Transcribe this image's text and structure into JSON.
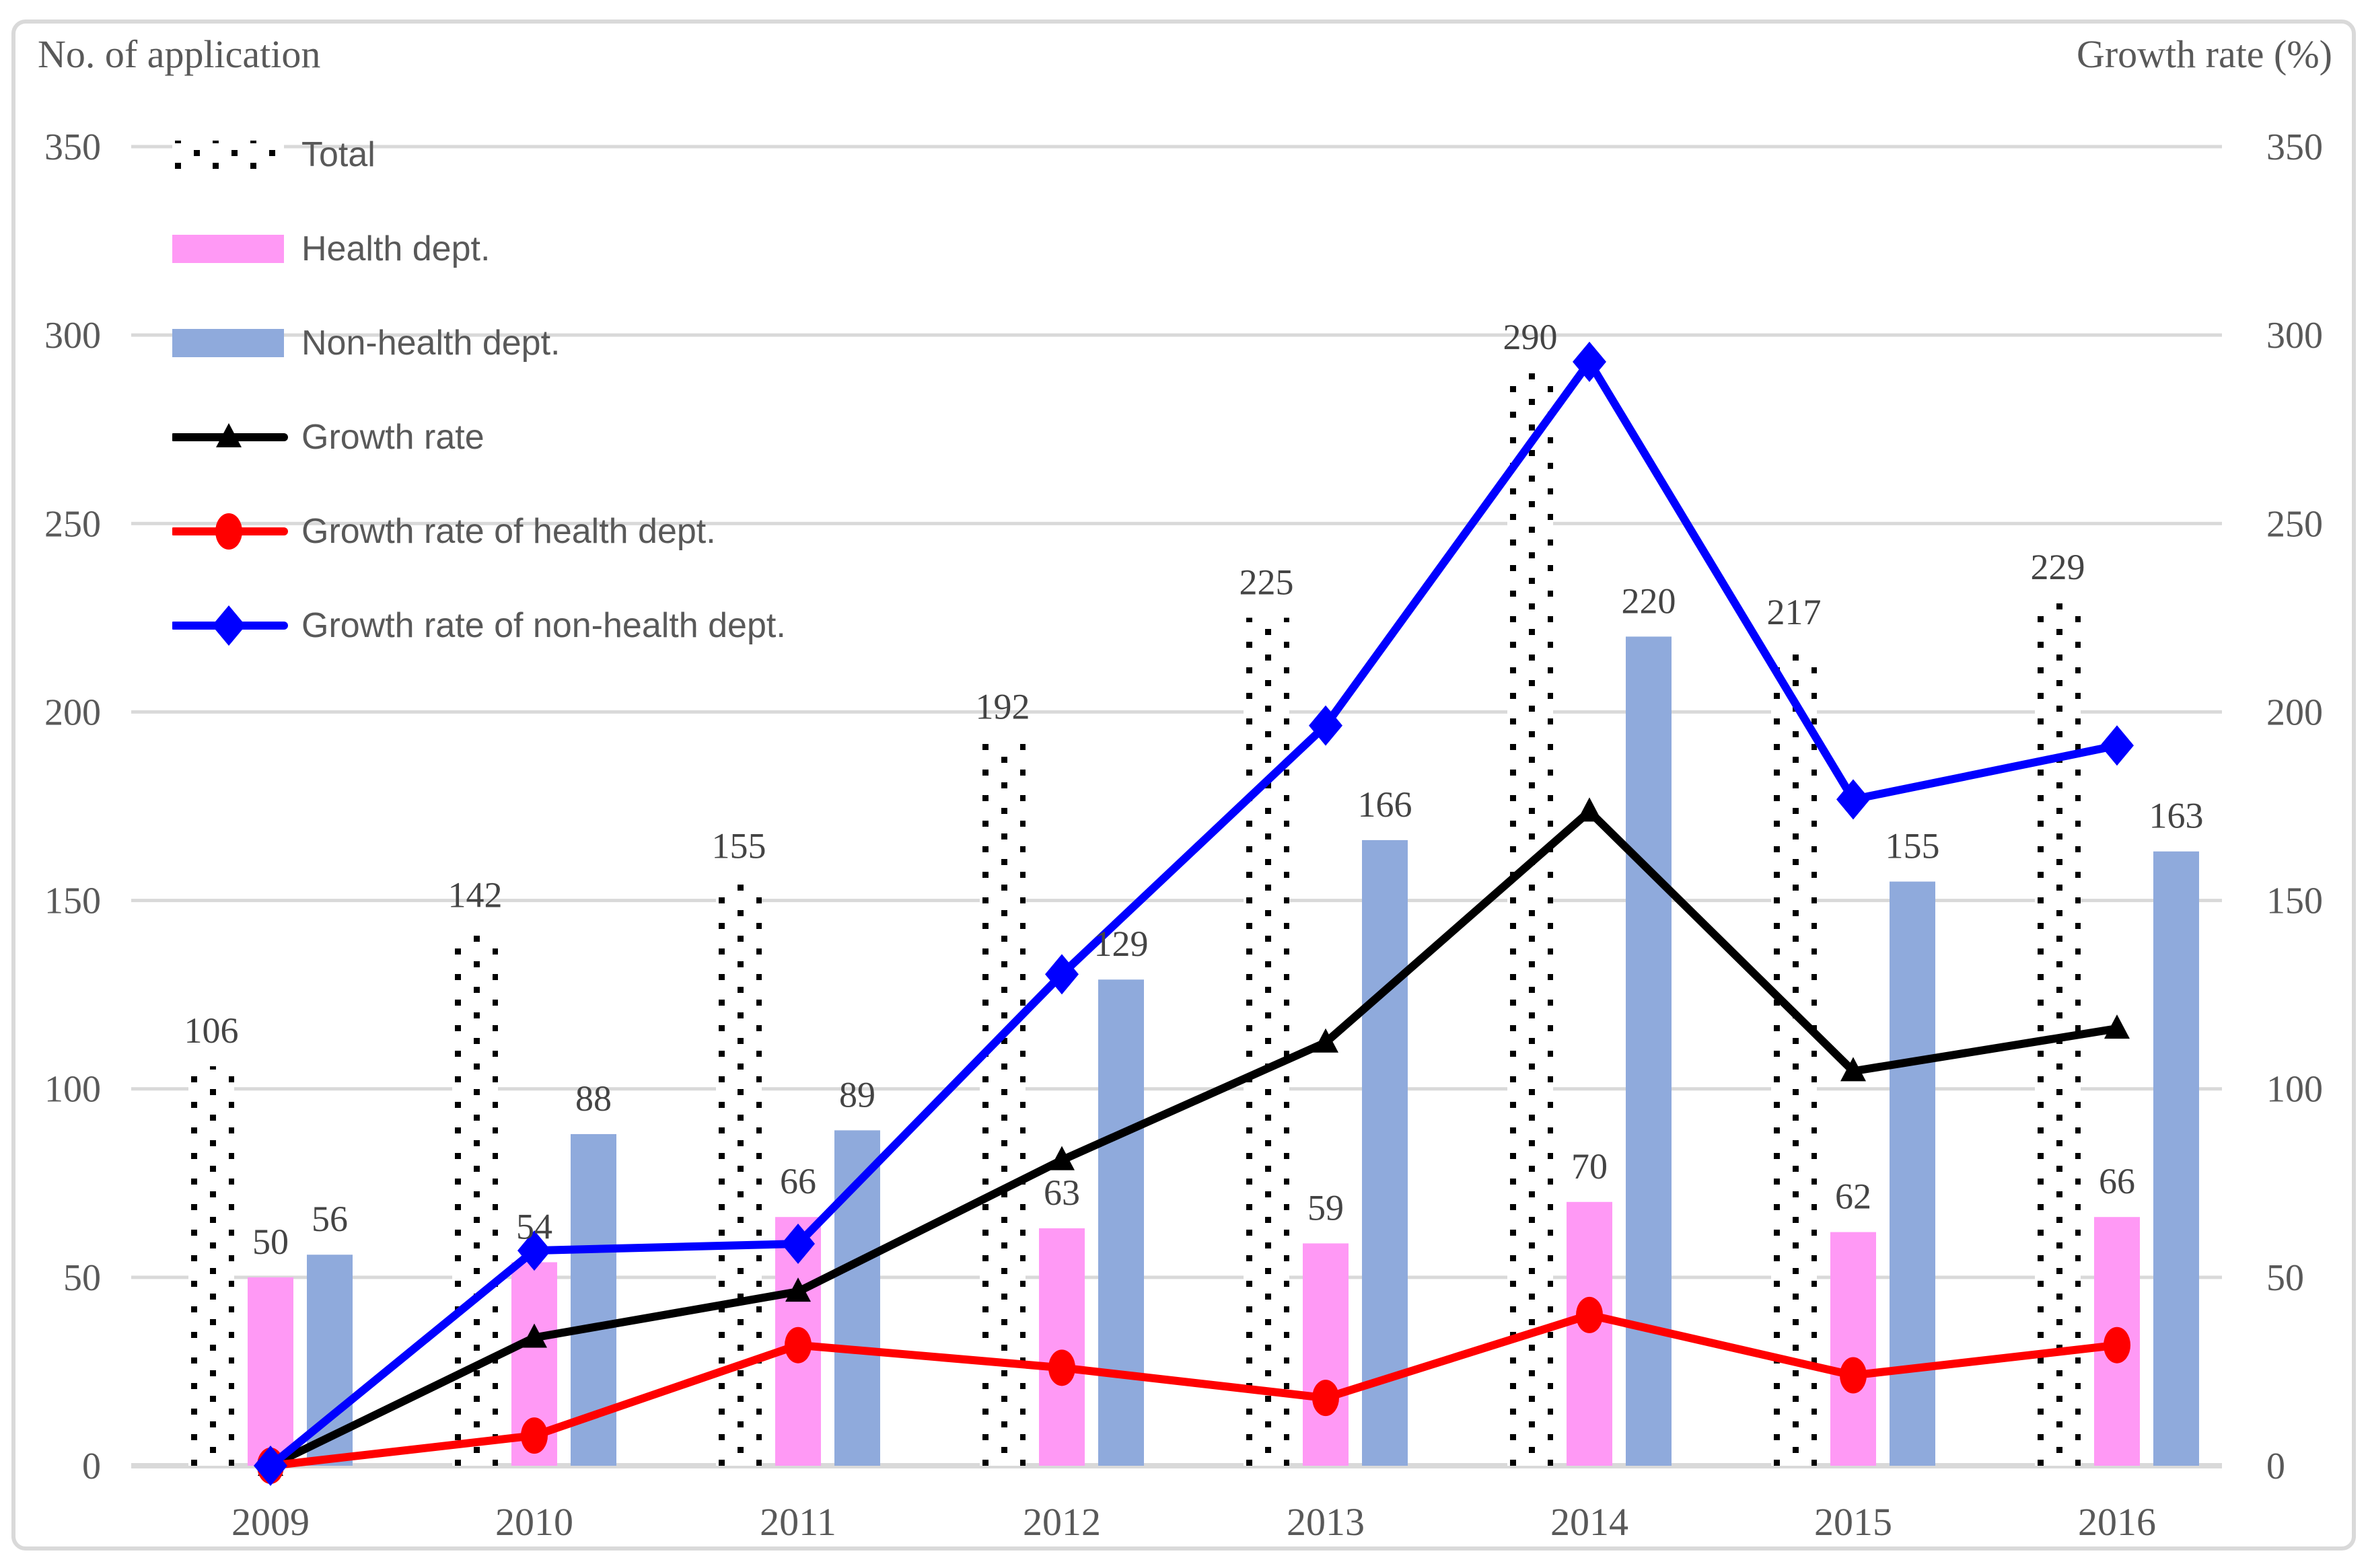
{
  "chart_data": {
    "type": "combo-bar-line",
    "categories": [
      "2009",
      "2010",
      "2011",
      "2012",
      "2013",
      "2014",
      "2015",
      "2016"
    ],
    "left_axis": {
      "title": "No. of application",
      "min": 0,
      "max": 350,
      "tick_step": 50,
      "ticks": [
        0,
        50,
        100,
        150,
        200,
        250,
        300,
        350
      ]
    },
    "right_axis": {
      "title": "Growth rate (%)",
      "min": 0,
      "max": 350,
      "tick_step": 50,
      "ticks": [
        0,
        50,
        100,
        150,
        200,
        250,
        300,
        350
      ]
    },
    "bar_series": [
      {
        "name": "Total",
        "fill_style": "dotted-pattern",
        "color": "#000000",
        "values": [
          106,
          142,
          155,
          192,
          225,
          290,
          217,
          229
        ]
      },
      {
        "name": "Health dept.",
        "fill_style": "solid",
        "color": "#FF99F5",
        "values": [
          50,
          54,
          66,
          63,
          59,
          70,
          62,
          66
        ]
      },
      {
        "name": "Non-health dept.",
        "fill_style": "solid",
        "color": "#8FAADC",
        "values": [
          56,
          88,
          89,
          129,
          166,
          220,
          155,
          163
        ]
      }
    ],
    "line_series": [
      {
        "name": "Growth rate",
        "color": "#000000",
        "marker": "triangle",
        "values": [
          0,
          34.0,
          46.2,
          81.1,
          112.3,
          173.6,
          104.7,
          116.0
        ]
      },
      {
        "name": "Growth rate of health dept.",
        "color": "#FF0000",
        "marker": "circle",
        "values": [
          0,
          8,
          32,
          26,
          18,
          40,
          24,
          32
        ]
      },
      {
        "name": "Growth rate of non-health dept.",
        "color": "#0000FF",
        "marker": "diamond",
        "values": [
          0,
          57.1,
          58.9,
          130.4,
          196.4,
          292.9,
          176.8,
          191.1
        ]
      }
    ],
    "legend_position": "upper-left-vertical",
    "grid": true,
    "grid_color": "#D9D9D9",
    "border_color": "#D9D9D9",
    "text_color": "#595959",
    "background_color": "#FFFFFF"
  }
}
